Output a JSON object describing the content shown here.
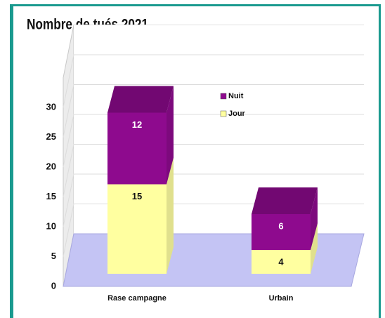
{
  "chart_data": {
    "type": "bar",
    "title": "Nombre de tués 2021",
    "categories": [
      "Rase campagne",
      "Urbain"
    ],
    "series": [
      {
        "name": "Jour",
        "color": "#ffffa0",
        "values": [
          15,
          4
        ]
      },
      {
        "name": "Nuit",
        "color": "#8e0a8e",
        "values": [
          12,
          6
        ]
      }
    ],
    "stacked": true,
    "ylim": [
      0,
      35
    ],
    "yticks": [
      0,
      5,
      10,
      15,
      20,
      25,
      30
    ],
    "grid": true,
    "legend": "top-right"
  }
}
